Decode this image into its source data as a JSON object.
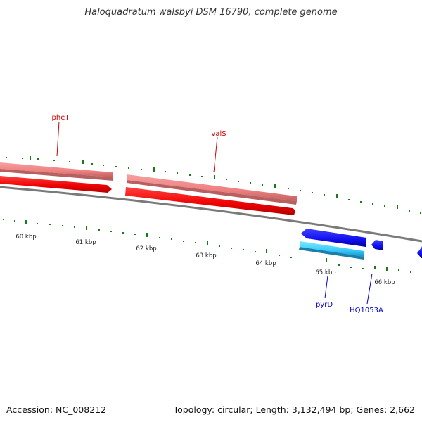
{
  "title": "Haloquadratum walsbyi DSM 16790, complete genome",
  "footer": {
    "accession": "Accession: NC_008212",
    "summary": "Topology: circular; Length: 3,132,494 bp; Genes: 2,662"
  },
  "scale": {
    "unit": "kbp",
    "ticks": [
      {
        "value": 60,
        "label": "60 kbp"
      },
      {
        "value": 61,
        "label": "61 kbp"
      },
      {
        "value": 62,
        "label": "62 kbp"
      },
      {
        "value": 63,
        "label": "63 kbp"
      },
      {
        "value": 64,
        "label": "64 kbp"
      },
      {
        "value": 65,
        "label": "65 kbp"
      },
      {
        "value": 66,
        "label": "66 kbp"
      }
    ]
  },
  "genes": [
    {
      "name": "pheT",
      "label_color": "#cc0000"
    },
    {
      "name": "valS",
      "label_color": "#cc0000"
    },
    {
      "name": "pyrD",
      "label_color": "#0000cc"
    },
    {
      "name": "HQ1053A",
      "label_color": "#0000cc"
    }
  ],
  "colors": {
    "backbone": "#808080",
    "tick": "#1a7a1a",
    "gene_forward": "#ff0000",
    "cds_forward": "#f08080",
    "gene_reverse": "#0000ee",
    "cds_reverse": "#33ccff"
  }
}
